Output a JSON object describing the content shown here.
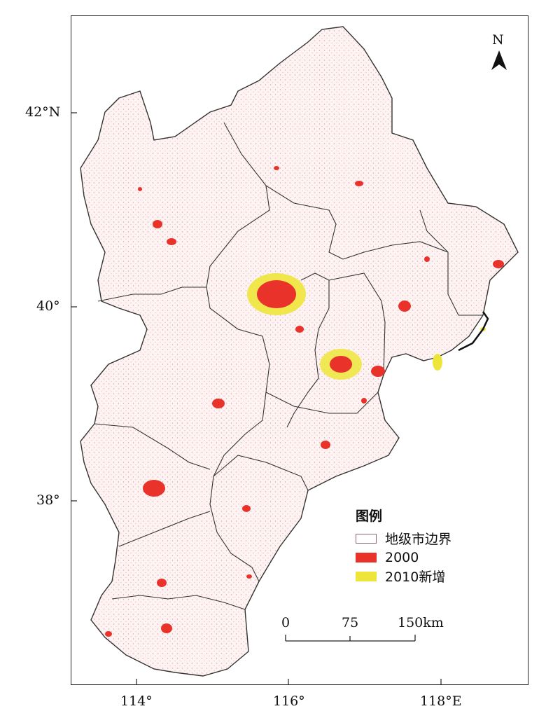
{
  "map": {
    "north_label": "N",
    "lat_labels": [
      "42°N",
      "40°",
      "38°"
    ],
    "lon_labels": [
      "114°",
      "116°",
      "118°E"
    ],
    "legend": {
      "title": "图例",
      "items": [
        {
          "label": "地级市边界",
          "color": "#ffffff",
          "border": "#8a6a6a"
        },
        {
          "label": "2000",
          "color": "#e8322a"
        },
        {
          "label": "2010新增",
          "color": "#eee53a"
        }
      ]
    },
    "scale": {
      "labels": [
        "0",
        "75",
        "150km"
      ]
    },
    "colors": {
      "urban_2000": "#e8322a",
      "urban_2010_new": "#eee53a",
      "boundary": "#333333",
      "speckle": "#f2b8b8"
    }
  }
}
